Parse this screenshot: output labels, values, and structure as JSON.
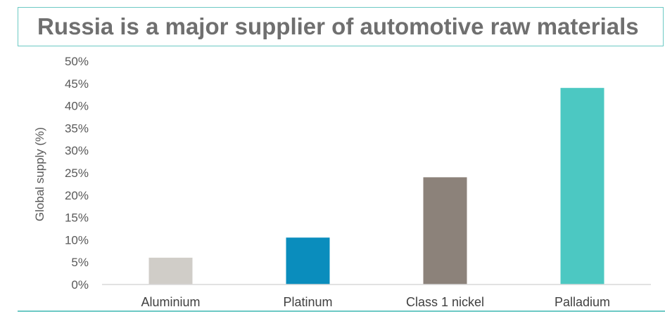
{
  "chart_data": {
    "type": "bar",
    "title": "Russia is a major supplier of automotive raw materials",
    "categories": [
      "Aluminium",
      "Platinum",
      "Class 1 nickel",
      "Palladium"
    ],
    "values": [
      6,
      10.5,
      24,
      44
    ],
    "colors": [
      "#d0cdc8",
      "#0a8dbd",
      "#8c827a",
      "#4cc8c2"
    ],
    "ylabel": "Global supply (%)",
    "xlabel": "",
    "ylim": [
      0,
      50
    ],
    "yticks": [
      "0%",
      "5%",
      "10%",
      "15%",
      "20%",
      "25%",
      "30%",
      "35%",
      "40%",
      "45%",
      "50%"
    ],
    "grid": false,
    "legend": "none"
  }
}
